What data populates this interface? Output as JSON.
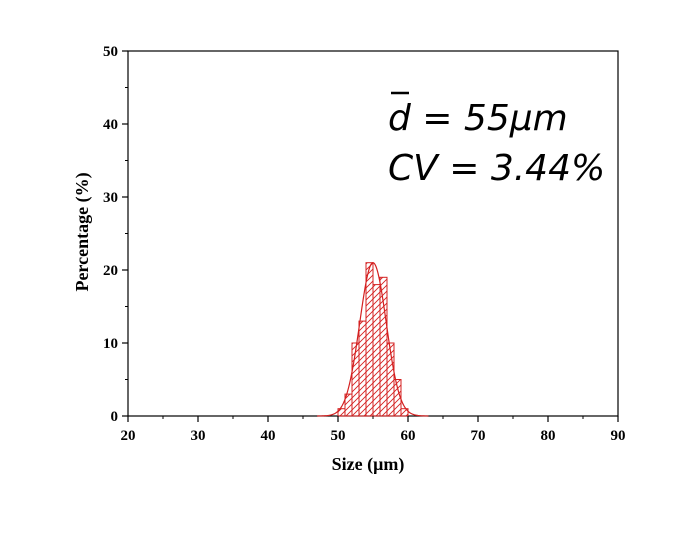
{
  "chart_data": {
    "type": "bar",
    "style": "hatched histogram with fitted normal curve",
    "xlabel": "Size (μm)",
    "ylabel": "Percentage (%)",
    "xlim": [
      20,
      90
    ],
    "ylim": [
      0,
      50
    ],
    "xticks": [
      "20",
      "30",
      "40",
      "50",
      "60",
      "70",
      "80",
      "90"
    ],
    "yticks": [
      "0",
      "10",
      "20",
      "30",
      "40",
      "50"
    ],
    "bin_width": 1,
    "bins": [
      {
        "x": 50,
        "value": 1
      },
      {
        "x": 51,
        "value": 3
      },
      {
        "x": 52,
        "value": 10
      },
      {
        "x": 53,
        "value": 13
      },
      {
        "x": 54,
        "value": 21
      },
      {
        "x": 55,
        "value": 18
      },
      {
        "x": 56,
        "value": 19
      },
      {
        "x": 57,
        "value": 10
      },
      {
        "x": 58,
        "value": 5
      },
      {
        "x": 59,
        "value": 1
      }
    ],
    "fit": {
      "type": "normal",
      "mean": 55,
      "std": 1.9,
      "peak": 21
    },
    "annotations": [
      {
        "symbol": "d",
        "text": " = 55μm"
      },
      {
        "text": "CV = 3.44%"
      }
    ],
    "bar_color": "#d42020",
    "grid": false
  }
}
